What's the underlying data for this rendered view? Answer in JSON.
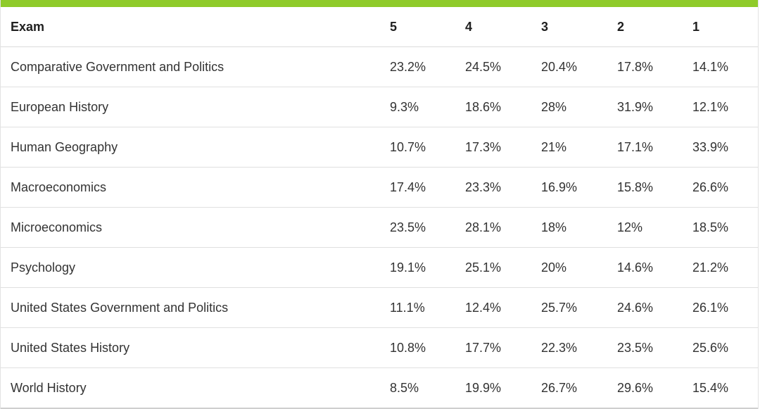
{
  "table": {
    "headers": [
      "Exam",
      "5",
      "4",
      "3",
      "2",
      "1"
    ],
    "rows": [
      [
        "Comparative Government and Politics",
        "23.2%",
        "24.5%",
        "20.4%",
        "17.8%",
        "14.1%"
      ],
      [
        "European History",
        "9.3%",
        "18.6%",
        "28%",
        "31.9%",
        "12.1%"
      ],
      [
        "Human Geography",
        "10.7%",
        "17.3%",
        "21%",
        "17.1%",
        "33.9%"
      ],
      [
        "Macroeconomics",
        "17.4%",
        "23.3%",
        "16.9%",
        "15.8%",
        "26.6%"
      ],
      [
        "Microeconomics",
        "23.5%",
        "28.1%",
        "18%",
        "12%",
        "18.5%"
      ],
      [
        "Psychology",
        "19.1%",
        "25.1%",
        "20%",
        "14.6%",
        "21.2%"
      ],
      [
        "United States Government and Politics",
        "11.1%",
        "12.4%",
        "25.7%",
        "24.6%",
        "26.1%"
      ],
      [
        "United States History",
        "10.8%",
        "17.7%",
        "22.3%",
        "23.5%",
        "25.6%"
      ],
      [
        "World History",
        "8.5%",
        "19.9%",
        "26.7%",
        "29.6%",
        "15.4%"
      ]
    ]
  },
  "colors": {
    "accent": "#8fcb2a",
    "divider": "#e0e0e0",
    "text": "#333333"
  }
}
